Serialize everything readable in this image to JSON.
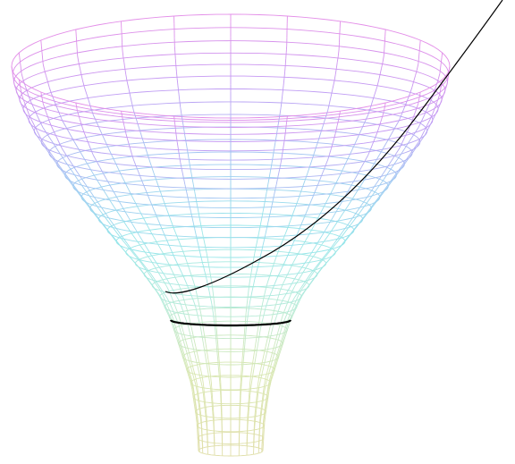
{
  "figure": {
    "type": "3d-wireframe-surface",
    "surface": "funnel",
    "mesh": {
      "meridians": 24,
      "rings": 34
    },
    "colormap": [
      "#e0dfaa",
      "#d9e7b1",
      "#b6ebd9",
      "#97e6ea",
      "#a0c8f2",
      "#c29af4",
      "#e38ee8"
    ],
    "curves": [
      {
        "kind": "spiral-geodesic",
        "color": "#000000"
      },
      {
        "kind": "throat-circle",
        "color": "#000000"
      }
    ],
    "background": "#ffffff"
  }
}
